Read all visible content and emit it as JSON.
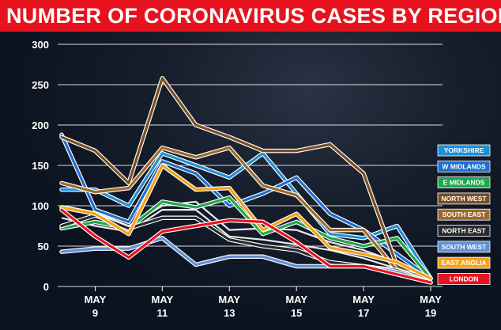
{
  "title": "NUMBER OF CORONAVIRUS CASES BY REGION",
  "chart_data": {
    "type": "line",
    "title": "NUMBER OF CORONAVIRUS CASES BY REGION",
    "xlabel": "",
    "ylabel": "",
    "x": [
      8,
      9,
      10,
      11,
      12,
      13,
      14,
      15,
      16,
      17,
      18,
      19
    ],
    "x_ticks": [
      {
        "x": 9,
        "line1": "MAY",
        "line2": "9"
      },
      {
        "x": 11,
        "line1": "MAY",
        "line2": "11"
      },
      {
        "x": 13,
        "line1": "MAY",
        "line2": "13"
      },
      {
        "x": 15,
        "line1": "MAY",
        "line2": "15"
      },
      {
        "x": 17,
        "line1": "MAY",
        "line2": "17"
      },
      {
        "x": 19,
        "line1": "MAY",
        "line2": "19"
      }
    ],
    "ylim": [
      0,
      300
    ],
    "xlim": [
      8,
      19
    ],
    "y_ticks": [
      0,
      50,
      100,
      150,
      200,
      250,
      300
    ],
    "grid": "horizontal",
    "legend_position": "right",
    "series": [
      {
        "name": "YORKSHIRE",
        "color": "#1e90d6",
        "values": [
          120,
          120,
          100,
          165,
          150,
          135,
          165,
          115,
          65,
          60,
          75,
          10
        ]
      },
      {
        "name": "W MIDLANDS",
        "color": "#1f6fcf",
        "values": [
          188,
          95,
          80,
          155,
          140,
          100,
          115,
          135,
          90,
          70,
          40,
          10
        ]
      },
      {
        "name": "E MIDLANDS",
        "color": "#1fa84a",
        "values": [
          72,
          80,
          72,
          105,
          98,
          110,
          65,
          80,
          60,
          50,
          60,
          10
        ]
      },
      {
        "name": "NORTH WEST",
        "color": "#7a4e22",
        "values": [
          185,
          168,
          128,
          258,
          200,
          185,
          168,
          168,
          176,
          140,
          25,
          10
        ]
      },
      {
        "name": "SOUTH EAST",
        "color": "#9c6a2c",
        "values": [
          128,
          117,
          122,
          172,
          160,
          172,
          125,
          113,
          70,
          70,
          20,
          10
        ]
      },
      {
        "name": "NORTH EAST",
        "color": "#2a2a2a",
        "values": [
          75,
          88,
          72,
          85,
          85,
          58,
          50,
          45,
          30,
          25,
          20,
          5
        ]
      },
      {
        "name": "SOUTH WEST",
        "color": "#5f8fd8",
        "values": [
          43,
          47,
          47,
          60,
          27,
          37,
          37,
          25,
          25,
          25,
          18,
          5
        ]
      },
      {
        "name": "EAST ANGLIA",
        "color": "#f5a218",
        "values": [
          98,
          90,
          65,
          150,
          120,
          122,
          70,
          90,
          48,
          40,
          30,
          10
        ]
      },
      {
        "name": "LONDON",
        "color": "#e8121e",
        "values": [
          95,
          62,
          36,
          68,
          75,
          82,
          80,
          55,
          25,
          25,
          15,
          5
        ]
      }
    ],
    "white_lines": [
      [
        100,
        92,
        75,
        100,
        105,
        70,
        72,
        70,
        55,
        45,
        30,
        5
      ],
      [
        85,
        75,
        68,
        95,
        95,
        62,
        58,
        52,
        45,
        35,
        22,
        5
      ]
    ]
  }
}
